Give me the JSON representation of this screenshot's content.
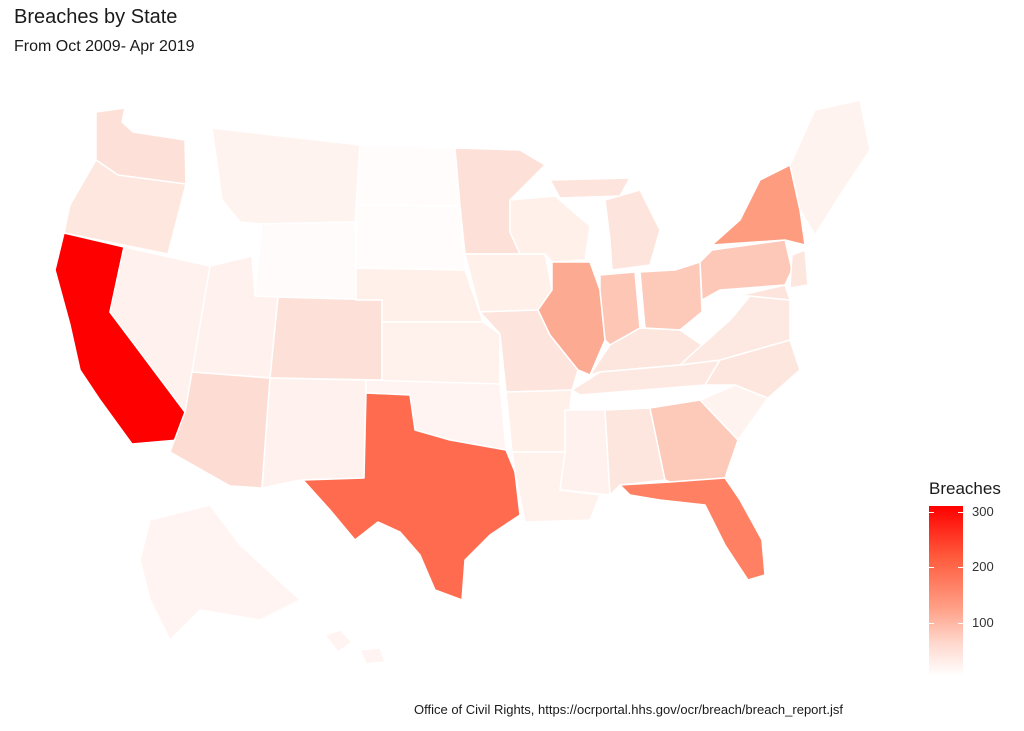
{
  "title": "Breaches by State",
  "subtitle": "From Oct 2009- Apr 2019",
  "caption": "Office of Civil Rights, https://ocrportal.hhs.gov/ocr/breach/breach_report.jsf",
  "legend": {
    "title": "Breaches",
    "ticks": [
      "300",
      "200",
      "100"
    ],
    "low_color": "#ffffff",
    "high_color": "#ff0000"
  },
  "map": {
    "region": "United States",
    "states": [
      {
        "state": "California",
        "level": 315
      },
      {
        "state": "Texas",
        "level": 230
      },
      {
        "state": "Florida",
        "level": 200
      },
      {
        "state": "New York",
        "level": 160
      },
      {
        "state": "Illinois",
        "level": 130
      },
      {
        "state": "Pennsylvania",
        "level": 90
      },
      {
        "state": "Ohio",
        "level": 90
      },
      {
        "state": "Indiana",
        "level": 85
      },
      {
        "state": "Georgia",
        "level": 75
      },
      {
        "state": "Arizona",
        "level": 55
      },
      {
        "state": "Colorado",
        "level": 60
      },
      {
        "state": "Washington",
        "level": 55
      },
      {
        "state": "Missouri",
        "level": 50
      }
    ]
  }
}
